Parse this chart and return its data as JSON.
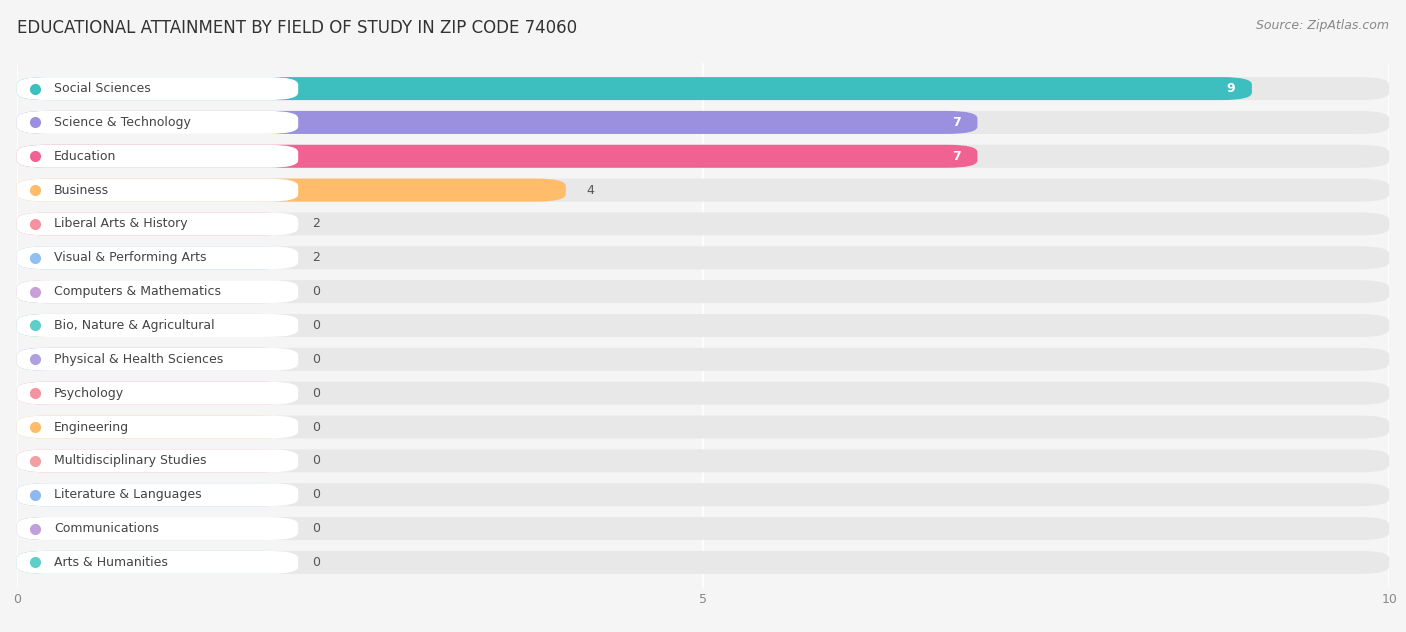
{
  "title": "EDUCATIONAL ATTAINMENT BY FIELD OF STUDY IN ZIP CODE 74060",
  "source": "Source: ZipAtlas.com",
  "categories": [
    "Social Sciences",
    "Science & Technology",
    "Education",
    "Business",
    "Liberal Arts & History",
    "Visual & Performing Arts",
    "Computers & Mathematics",
    "Bio, Nature & Agricultural",
    "Physical & Health Sciences",
    "Psychology",
    "Engineering",
    "Multidisciplinary Studies",
    "Literature & Languages",
    "Communications",
    "Arts & Humanities"
  ],
  "values": [
    9,
    7,
    7,
    4,
    2,
    2,
    0,
    0,
    0,
    0,
    0,
    0,
    0,
    0,
    0
  ],
  "bar_colors": [
    "#3DBFBF",
    "#9B8FE0",
    "#F06292",
    "#FFBC6A",
    "#F4929F",
    "#90C0F0",
    "#C8A0D8",
    "#5ECEC8",
    "#B0A0E0",
    "#F4929F",
    "#FFBC6A",
    "#F0A0A0",
    "#90B8F0",
    "#C0A0D8",
    "#5ECEC8"
  ],
  "dot_colors": [
    "#3DBFBF",
    "#9B8FE0",
    "#F06292",
    "#FFBC6A",
    "#F4929F",
    "#90C0F0",
    "#C8A0D8",
    "#5ECEC8",
    "#B0A0E0",
    "#F4929F",
    "#FFBC6A",
    "#F0A0A0",
    "#90B8F0",
    "#C0A0D8",
    "#5ECEC8"
  ],
  "xlim_max": 10,
  "background_color": "#f5f5f5",
  "bar_bg_color": "#e8e8e8",
  "row_bg_color": "#efefef",
  "title_fontsize": 12,
  "source_fontsize": 9,
  "label_fontsize": 9,
  "value_fontsize": 9
}
